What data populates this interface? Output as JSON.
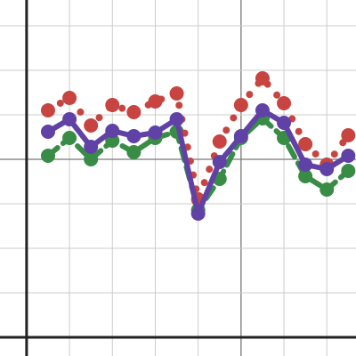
{
  "chart_data": {
    "type": "line",
    "x": [
      0.5,
      1,
      1.5,
      2,
      2.5,
      3,
      3.5,
      4,
      4.5,
      5,
      5.5,
      6,
      6.5,
      7,
      7.5
    ],
    "series": [
      {
        "color": "#388c46",
        "line_style": "dashed",
        "values": [
          4.08,
          4.48,
          4.0,
          4.42,
          4.16,
          4.48,
          4.62,
          2.86,
          3.56,
          4.48,
          4.92,
          4.48,
          3.62,
          3.32,
          3.74
        ]
      },
      {
        "color": "#c74440",
        "line_style": "dotted",
        "values": [
          5.1,
          5.38,
          4.76,
          5.22,
          5.06,
          5.3,
          5.48,
          3.1,
          4.4,
          5.22,
          5.82,
          5.26,
          4.34,
          3.88,
          4.54
        ]
      },
      {
        "color": "#6042a6",
        "line_style": "solid",
        "values": [
          4.62,
          4.9,
          4.28,
          4.64,
          4.52,
          4.6,
          4.9,
          2.78,
          3.94,
          4.52,
          5.1,
          4.82,
          3.88,
          3.78,
          4.08
        ]
      }
    ],
    "xlim": [
      -0.62,
      7.68
    ],
    "ylim": [
      -0.42,
      7.58
    ],
    "xticks": [
      0,
      1,
      2,
      3,
      4,
      5,
      6,
      7
    ],
    "yticks": [
      0,
      1,
      2,
      3,
      4,
      5,
      6,
      7
    ],
    "grid": true
  }
}
